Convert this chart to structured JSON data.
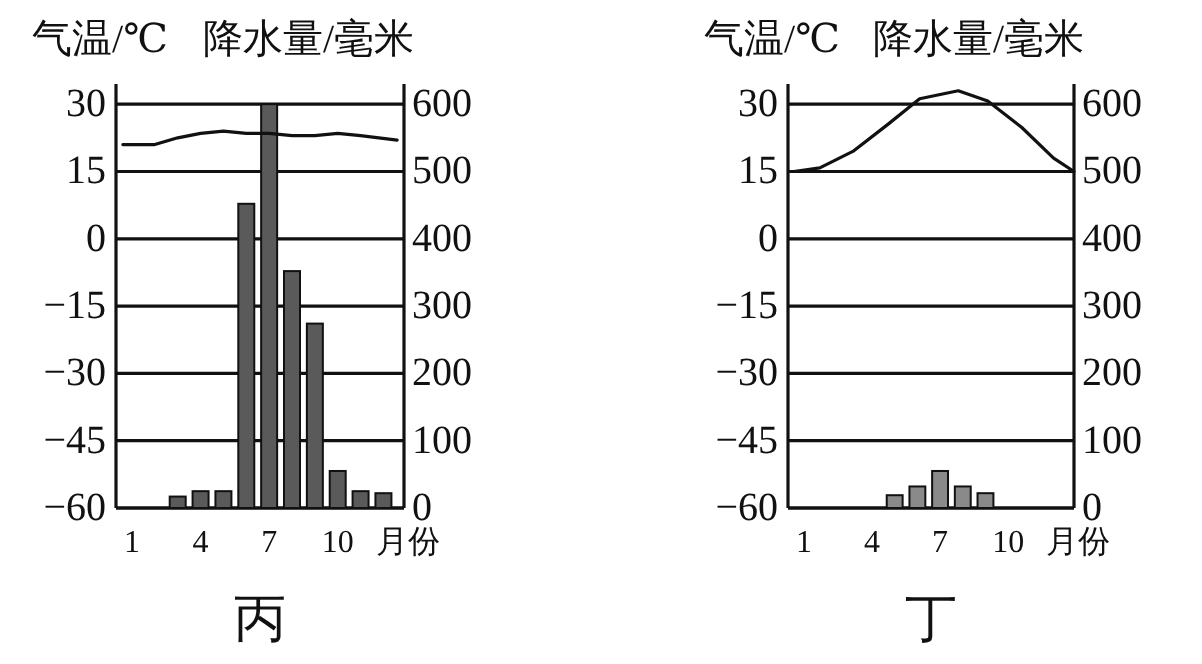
{
  "chart_data": [
    {
      "type": "bar",
      "title": "丙",
      "xlabel": "月份",
      "ylabel": "气温/℃",
      "y2label": "降水量/毫米",
      "x": [
        1,
        2,
        3,
        4,
        5,
        6,
        7,
        8,
        9,
        10,
        11,
        12
      ],
      "xlim": [
        0.3,
        12.9
      ],
      "xticks": [
        1,
        4,
        7,
        10
      ],
      "ylim": [
        -60,
        34.5
      ],
      "yticks": [
        30,
        15,
        0,
        -15,
        -30,
        -45,
        -60
      ],
      "y2lim": [
        0,
        630
      ],
      "y2ticks": [
        0,
        100,
        200,
        300,
        400,
        500,
        600
      ],
      "grid": "y",
      "series": [
        {
          "axis": "y2",
          "color": "#5a5a5a",
          "values": [
            0,
            0,
            17,
            25,
            25,
            452,
            600,
            352,
            274,
            55,
            25,
            22
          ]
        },
        {
          "type": "line",
          "axis": "y",
          "color": "#111111",
          "x": [
            0.6,
            2,
            3,
            4,
            5,
            6,
            7,
            8,
            9,
            10,
            11,
            12.6
          ],
          "values": [
            21,
            21,
            22.5,
            23.5,
            24,
            23.5,
            23.5,
            23,
            23,
            23.5,
            23,
            22
          ]
        }
      ]
    },
    {
      "type": "bar",
      "title": "丁",
      "xlabel": "月份",
      "ylabel": "气温/℃",
      "y2label": "降水量/毫米",
      "x": [
        1,
        2,
        3,
        4,
        5,
        6,
        7,
        8,
        9,
        10,
        11,
        12
      ],
      "xlim": [
        0.3,
        12.9
      ],
      "xticks": [
        1,
        4,
        7,
        10
      ],
      "ylim": [
        -60,
        34.5
      ],
      "yticks": [
        30,
        15,
        0,
        -15,
        -30,
        -45,
        -60
      ],
      "y2lim": [
        0,
        630
      ],
      "y2ticks": [
        0,
        100,
        200,
        300,
        400,
        500,
        600
      ],
      "grid": "y",
      "series": [
        {
          "axis": "y2",
          "color": "#8a8a8a",
          "values": [
            0,
            0,
            0,
            0,
            19,
            32,
            55,
            32,
            22,
            0,
            0,
            0
          ]
        },
        {
          "type": "line",
          "axis": "y",
          "color": "#111111",
          "x": [
            0.56,
            1.7,
            3.2,
            4.7,
            6.1,
            7.8,
            9.1,
            10.6,
            12,
            12.9
          ],
          "values": [
            15,
            15.8,
            19.6,
            25.5,
            31.2,
            33,
            30.7,
            24.8,
            18,
            15
          ]
        }
      ]
    }
  ]
}
